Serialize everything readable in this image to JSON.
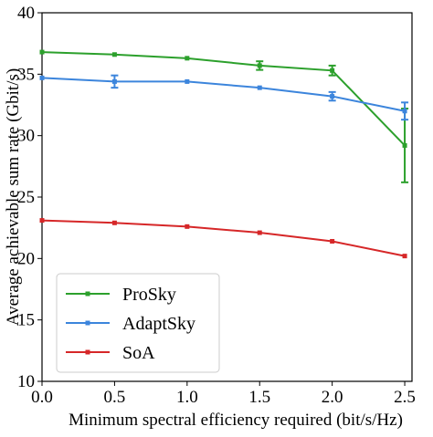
{
  "chart_data": {
    "type": "line",
    "xlabel": "Minimum spectral efficiency required (bit/s/Hz)",
    "ylabel": "Average achievable sum rate (Gbit/s)",
    "xlim": [
      0.0,
      2.55
    ],
    "ylim": [
      10,
      40
    ],
    "xticks": [
      0.0,
      0.5,
      1.0,
      1.5,
      2.0,
      2.5
    ],
    "yticks": [
      10,
      15,
      20,
      25,
      30,
      35,
      40
    ],
    "xtick_labels": [
      "0.0",
      "0.5",
      "1.0",
      "1.5",
      "2.0",
      "2.5"
    ],
    "ytick_labels": [
      "10",
      "15",
      "20",
      "25",
      "30",
      "35",
      "40"
    ],
    "x": [
      0.0,
      0.5,
      1.0,
      1.5,
      2.0,
      2.5
    ],
    "grid": false,
    "legend_position": "lower-left",
    "series": [
      {
        "name": "ProSky",
        "color": "#2ca02c",
        "values": [
          36.8,
          36.6,
          36.3,
          35.7,
          35.3,
          29.2
        ],
        "error": [
          0.0,
          0.0,
          0.0,
          0.35,
          0.4,
          3.0
        ]
      },
      {
        "name": "AdaptSky",
        "color": "#3c85dc",
        "values": [
          34.7,
          34.4,
          34.4,
          33.9,
          33.2,
          32.0
        ],
        "error": [
          0.0,
          0.5,
          0.0,
          0.0,
          0.35,
          0.7
        ]
      },
      {
        "name": "SoA",
        "color": "#d62728",
        "values": [
          23.1,
          22.9,
          22.6,
          22.1,
          21.4,
          20.2
        ],
        "error": [
          0.0,
          0.0,
          0.0,
          0.0,
          0.0,
          0.0
        ]
      }
    ]
  }
}
